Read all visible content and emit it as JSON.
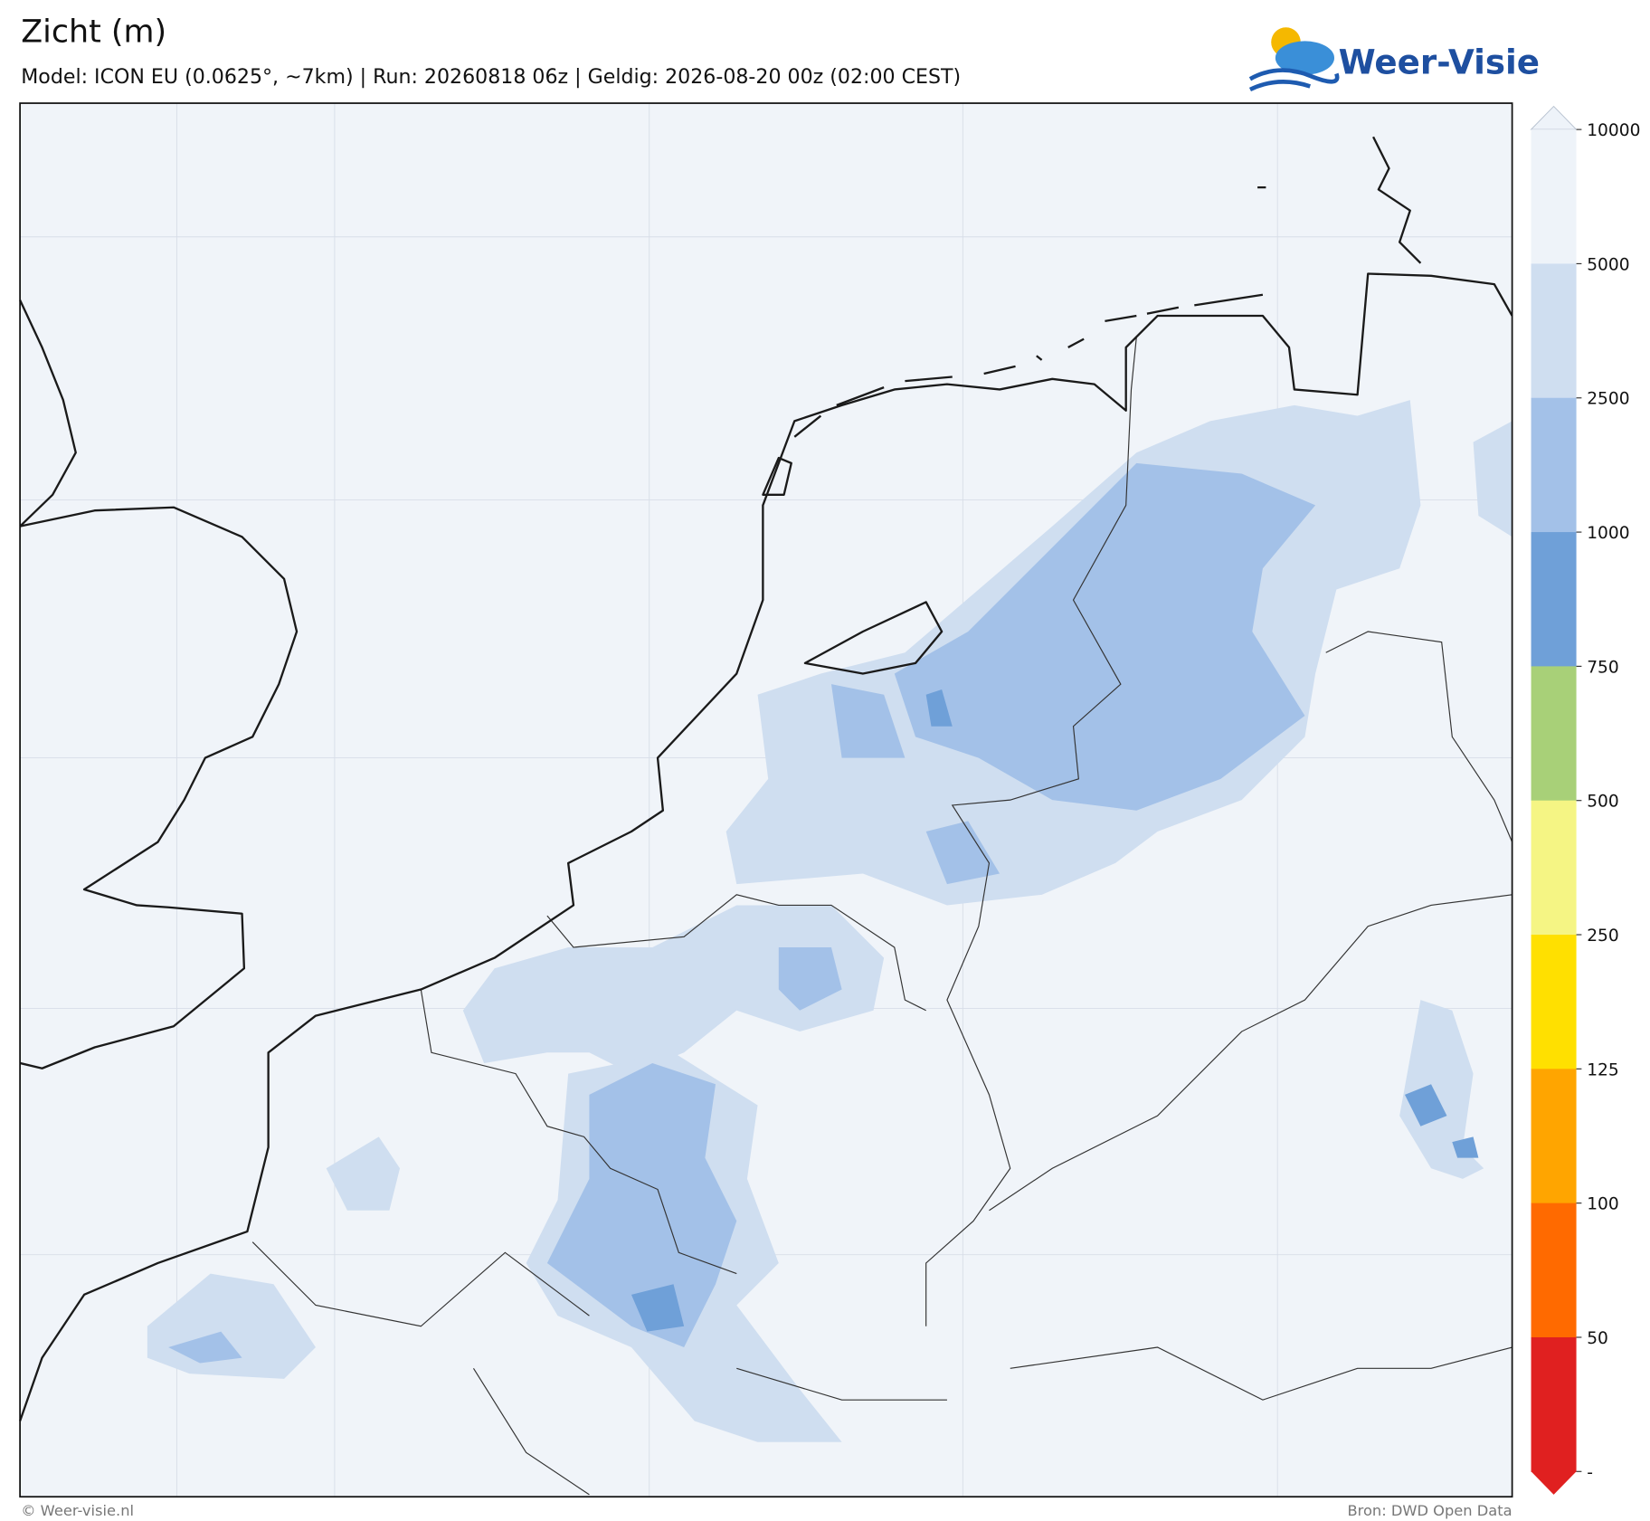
{
  "header": {
    "title": "Zicht (m)",
    "subtitle": "Model: ICON EU (0.0625°, ~7km)  |  Run: 20260818 06z  |  Geldig: 2026-08-20 00z (02:00 CEST)",
    "logo": "Weer-Visie"
  },
  "colorbar": {
    "ticks": [
      10000,
      5000,
      2500,
      1000,
      750,
      500,
      250,
      125,
      100,
      50
    ],
    "bottom_label": "-",
    "colors": [
      "#eef3f9",
      "#cfdef0",
      "#a3c1e8",
      "#6fa0d8",
      "#a8d078",
      "#f5f584",
      "#ffe000",
      "#ffa500",
      "#ff6a00",
      "#e02020"
    ]
  },
  "footer": {
    "left": "© Weer-visie.nl",
    "right": "Bron: DWD Open Data"
  }
}
